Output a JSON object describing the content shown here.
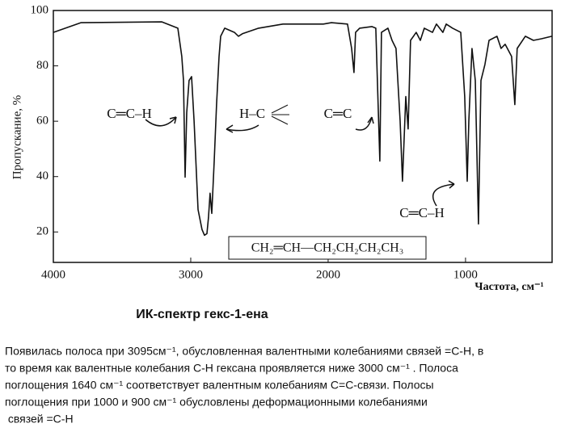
{
  "chart_data": {
    "type": "line",
    "y_label": "Пропускание, %",
    "x_label": "Частота, см⁻¹",
    "caption": "ИК-спектр гекс-1-ена",
    "annotations": [
      "C═C–H",
      "H–C",
      "C═C",
      "C═C–H",
      "CH₂═CH—CH₂CH₂CH₂CH₃"
    ],
    "x": [
      4000,
      3800,
      3210,
      3094,
      3065,
      3053,
      3041,
      3029,
      3012,
      2994,
      2976,
      2947,
      2918,
      2900,
      2882,
      2871,
      2859,
      2847,
      2829,
      2812,
      2794,
      2782,
      2753,
      2682,
      2653,
      2624,
      2506,
      2329,
      2035,
      1976,
      1859,
      1829,
      1812,
      1800,
      1771,
      1682,
      1653,
      1624,
      1612,
      1565,
      1535,
      1506,
      1476,
      1459,
      1435,
      1418,
      1400,
      1359,
      1329,
      1300,
      1241,
      1212,
      1165,
      1141,
      1094,
      1035,
      1006,
      988,
      976,
      953,
      929,
      906,
      888,
      859,
      829,
      771,
      741,
      712,
      665,
      641,
      624,
      565,
      506,
      447,
      371
    ],
    "series": [
      {
        "name": "гекс-1-ен",
        "color": "#111111",
        "values": [
          92.1,
          95.6,
          95.9,
          93.6,
          83.4,
          74.7,
          39.8,
          63.1,
          74.7,
          76.1,
          60.1,
          28.1,
          20.9,
          18.8,
          19.4,
          25.2,
          34.0,
          26.7,
          45.6,
          66.0,
          83.4,
          90.7,
          93.6,
          92.1,
          90.7,
          91.6,
          93.6,
          95.1,
          95.1,
          95.6,
          95.1,
          86.3,
          77.6,
          92.1,
          93.6,
          94.2,
          93.6,
          45.6,
          92.1,
          93.6,
          89.2,
          86.3,
          60.1,
          38.3,
          68.9,
          57.2,
          89.2,
          92.1,
          89.2,
          93.6,
          92.1,
          95.1,
          92.1,
          95.1,
          93.6,
          92.1,
          68.9,
          38.3,
          60.1,
          86.3,
          74.7,
          22.9,
          74.7,
          80.5,
          89.2,
          90.7,
          86.3,
          87.8,
          83.4,
          66.0,
          86.3,
          90.7,
          89.2,
          89.8,
          90.7
        ]
      }
    ],
    "xlim": [
      4000,
      370
    ],
    "ylim": [
      9,
      100
    ],
    "xticks": [
      4000,
      3000,
      2000,
      1000
    ],
    "yticks": [
      20,
      40,
      60,
      80,
      100
    ]
  },
  "text": {
    "lines": [
      "Появилась полоса при 3095см⁻¹, обусловленная валентными колебаниями связей =C-H, в",
      "то время как валентные колебания C-H гексана проявляется ниже 3000 см⁻¹ . Полоса",
      "поглощения 1640 см⁻¹ соответствует валентным колебаниям C=C-связи. Полосы",
      "поглощения при 1000 и 900 см⁻¹ обусловлены деформационными колебаниями",
      " связей =C-H"
    ]
  }
}
